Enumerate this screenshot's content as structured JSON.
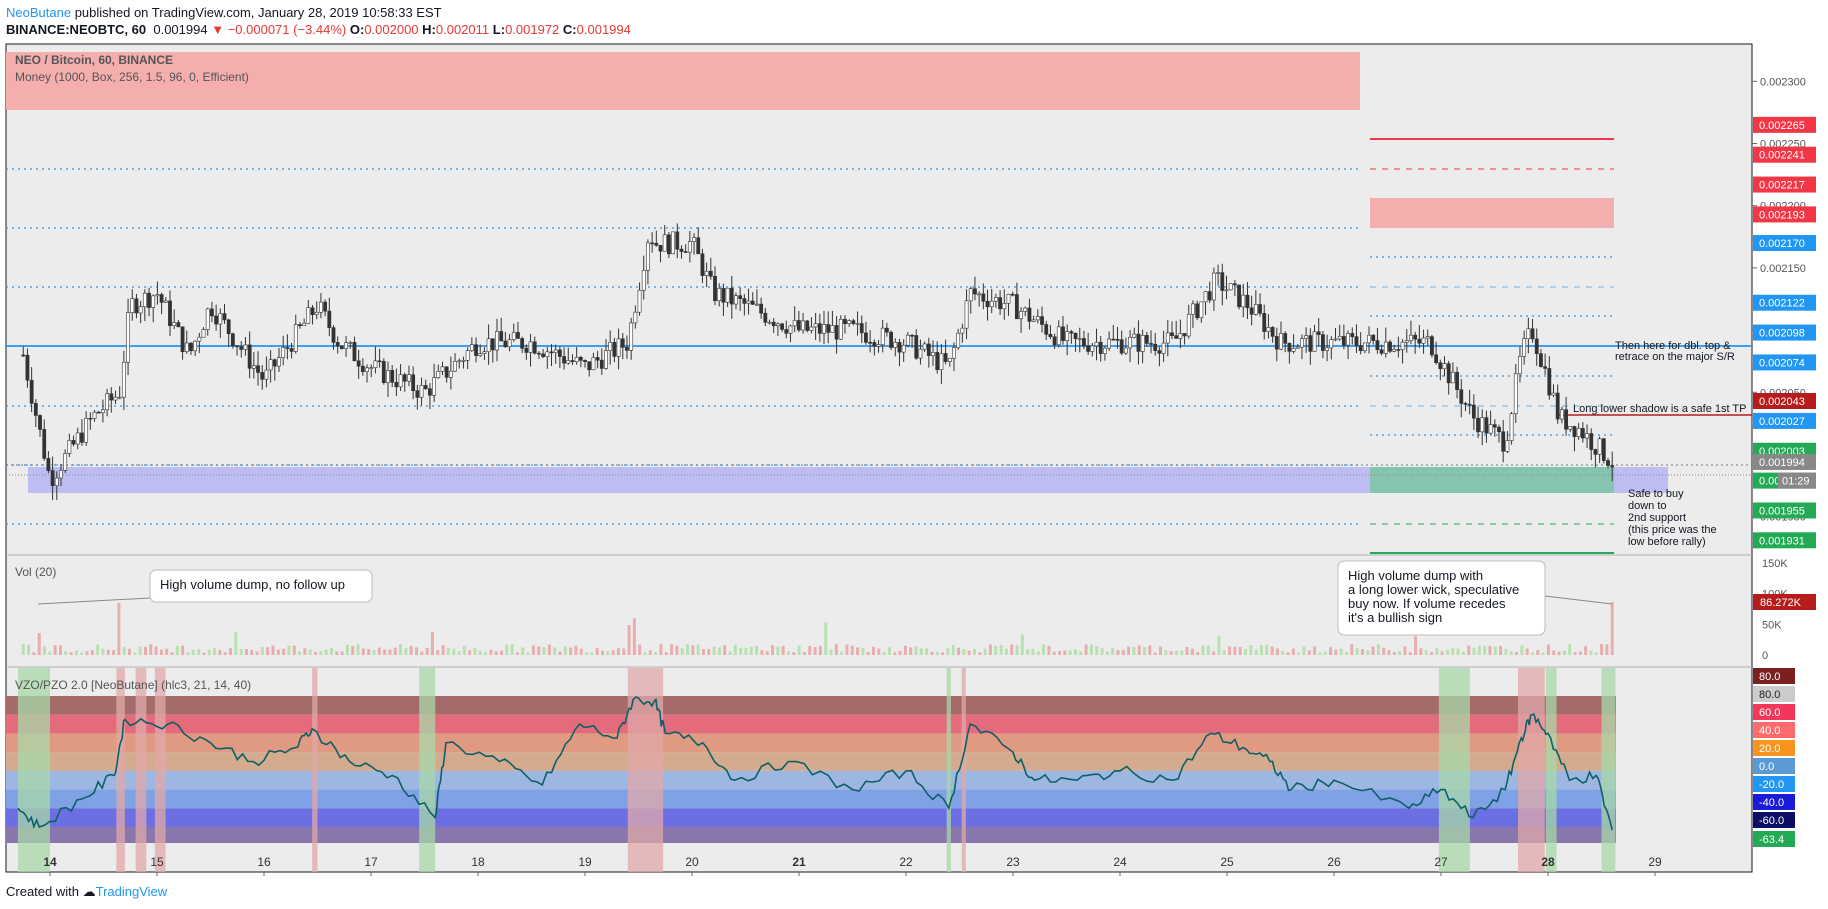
{
  "header": {
    "author": "NeoButane",
    "published": "published on TradingView.com, January 28, 2019 10:58:33 EST",
    "symbol": "BINANCE:NEOBTC, 60",
    "last": "0.001994",
    "change": "▼ −0.000071 (−3.44%)",
    "o_label": "O:",
    "o": "0.002000",
    "h_label": "H:",
    "h": "0.002011",
    "l_label": "L:",
    "l": "0.001972",
    "c_label": "C:",
    "c": "0.001994"
  },
  "legend": {
    "title": "NEO / Bitcoin, 60, BINANCE",
    "indicator": "Money (1000, Box, 256, 1.5, 96, 0, Efficient)",
    "vol": "Vol (20)",
    "osc": "VZO/PZO 2.0 [NeoButane] (hlc3, 21, 14, 40)"
  },
  "annotations": {
    "vol_left": "High volume dump, no follow up",
    "vol_right": [
      "High volume dump with",
      "a long lower wick, speculative",
      "buy now. If volume recedes",
      "it's a bullish sign"
    ],
    "dbl_top": [
      "Then here for dbl. top &",
      "retrace on the major S/R"
    ],
    "shadow": "Long lower shadow is a safe 1st TP",
    "safe": [
      "Safe to buy",
      "down to",
      "2nd support",
      "(this price was the",
      "low before rally)"
    ]
  },
  "price_ticks": [
    "0.002300",
    "0.002250",
    "0.002200",
    "0.002150",
    "0.002100",
    "0.002050",
    "0.002000",
    "0.001950"
  ],
  "price_tags": [
    {
      "label": "0.002265",
      "color": "#f23645"
    },
    {
      "label": "0.002241",
      "color": "#f23645"
    },
    {
      "label": "0.002217",
      "color": "#f23645"
    },
    {
      "label": "0.002193",
      "color": "#f23645"
    },
    {
      "label": "0.002170",
      "color": "#2196f3"
    },
    {
      "label": "0.002122",
      "color": "#2196f3"
    },
    {
      "label": "0.002098",
      "color": "#2196f3"
    },
    {
      "label": "0.002074",
      "color": "#2196f3"
    },
    {
      "label": "0.002043",
      "color": "#b71c1c"
    },
    {
      "label": "0.002027",
      "color": "#2196f3"
    },
    {
      "label": "0.002003",
      "color": "#22ab54"
    },
    {
      "label": "0.001994",
      "color": "#888888"
    },
    {
      "label": "0.001979",
      "color": "#22ab54"
    },
    {
      "label": "0.001955",
      "color": "#22ab54"
    },
    {
      "label": "0.001931",
      "color": "#22ab54"
    }
  ],
  "countdown": "01:29",
  "vol_ticks": [
    "150K",
    "100K",
    "50K",
    "0"
  ],
  "vol_tag": "86.272K",
  "osc_tags": [
    {
      "label": "80.0",
      "color": "#7b1f1f"
    },
    {
      "label": "80.0",
      "color": "#cccccc"
    },
    {
      "label": "60.0",
      "color": "#f2385a"
    },
    {
      "label": "40.0",
      "color": "#ff6b6b"
    },
    {
      "label": "20.0",
      "color": "#f7941d"
    },
    {
      "label": "0.0",
      "color": "#5b9bd5"
    },
    {
      "label": "-20.0",
      "color": "#2196f3"
    },
    {
      "label": "-40.0",
      "color": "#1a1ad9"
    },
    {
      "label": "-60.0",
      "color": "#0d0d66"
    },
    {
      "label": "-63.4",
      "color": "#22ab54"
    }
  ],
  "x_ticks": [
    "14",
    "15",
    "16",
    "17",
    "18",
    "19",
    "20",
    "21",
    "22",
    "23",
    "24",
    "25",
    "26",
    "27",
    "28",
    "29"
  ],
  "footer": {
    "created": "Created with",
    "brand": "TradingView"
  },
  "chart_data": {
    "type": "candlestick",
    "title": "NEO / Bitcoin, 60, BINANCE",
    "ylim": [
      0.00192,
      0.00233
    ],
    "xrange": [
      "Jan 13 ~18:00",
      "Jan 29 ~18:00"
    ],
    "close_series": {
      "x": [
        "13.75",
        "14.0",
        "14.4",
        "14.65",
        "14.75",
        "15.0",
        "15.3",
        "15.5",
        "16.0",
        "16.5",
        "16.7",
        "17.0",
        "17.5",
        "18.0",
        "18.5",
        "19.0",
        "19.4",
        "19.6",
        "19.65",
        "20.0",
        "20.2",
        "20.5",
        "21.0",
        "21.5",
        "22.0",
        "22.4",
        "22.6",
        "23.0",
        "23.5",
        "24.0",
        "24.5",
        "24.9",
        "25.2",
        "25.5",
        "26.0",
        "26.5",
        "26.9",
        "27.3",
        "27.6",
        "27.75",
        "27.85",
        "28.0",
        "28.1",
        "28.3",
        "28.6"
      ],
      "values": [
        0.00208,
        0.00198,
        0.00203,
        0.00205,
        0.00212,
        0.00213,
        0.00208,
        0.00212,
        0.00206,
        0.00212,
        0.00209,
        0.00207,
        0.00205,
        0.00209,
        0.00209,
        0.00207,
        0.00209,
        0.00218,
        0.00217,
        0.00217,
        0.00213,
        0.00212,
        0.0021,
        0.0021,
        0.00209,
        0.00207,
        0.00213,
        0.00212,
        0.00209,
        0.00209,
        0.00209,
        0.00214,
        0.00212,
        0.00209,
        0.00209,
        0.00209,
        0.00209,
        0.00203,
        0.00201,
        0.00208,
        0.0021,
        0.00206,
        0.00203,
        0.00202,
        0.001994
      ]
    },
    "levels": {
      "major_sr": 0.002098,
      "resistance_zone": [
        0.002193,
        0.002217
      ],
      "support_zone": [
        0.001979,
        0.002003
      ]
    },
    "volume": {
      "ylim": [
        0,
        150000
      ],
      "last": 86272
    },
    "oscillator": {
      "ylim": [
        -63.4,
        80.0
      ],
      "last": -63.4
    }
  }
}
